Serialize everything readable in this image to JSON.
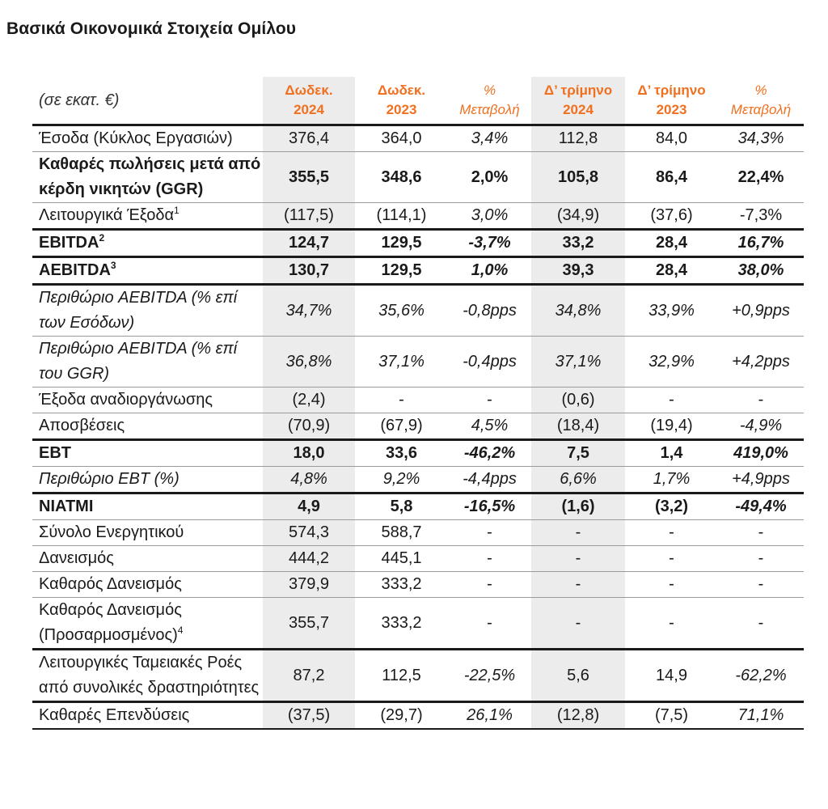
{
  "title": "Βασικά Οικονομικά Στοιχεία Ομίλου",
  "header": {
    "unit": "(σε εκατ. €)",
    "columns": [
      {
        "line1": "Δωδεκ.",
        "line2": "2024"
      },
      {
        "line1": "Δωδεκ.",
        "line2": "2023"
      },
      {
        "line1": "%",
        "line2": "Μεταβολή"
      },
      {
        "line1": "Δ’ τρίμηνο",
        "line2": "2024"
      },
      {
        "line1": "Δ’ τρίμηνο",
        "line2": "2023"
      },
      {
        "line1": "%",
        "line2": "Μεταβολή"
      }
    ]
  },
  "rows": [
    {
      "label": "Έσοδα (Κύκλος Εργασιών)",
      "sup": "",
      "values": [
        "376,4",
        "364,0",
        "3,4%",
        "112,8",
        "84,0",
        "34,3%"
      ]
    },
    {
      "label": "Καθαρές πωλήσεις μετά από κέρδη νικητών (GGR)",
      "sup": "",
      "values": [
        "355,5",
        "348,6",
        "2,0%",
        "105,8",
        "86,4",
        "22,4%"
      ]
    },
    {
      "label": "Λειτουργικά Έξοδα",
      "sup": "1",
      "values": [
        "(117,5)",
        "(114,1)",
        "3,0%",
        "(34,9)",
        "(37,6)",
        "-7,3%"
      ]
    },
    {
      "label": "EBITDA",
      "sup": "2",
      "values": [
        "124,7",
        "129,5",
        "-3,7%",
        "33,2",
        "28,4",
        "16,7%"
      ]
    },
    {
      "label": "AEBITDA",
      "sup": "3",
      "values": [
        "130,7",
        "129,5",
        "1,0%",
        "39,3",
        "28,4",
        "38,0%"
      ]
    },
    {
      "label": "Περιθώριο AEBITDA (% επί των Εσόδων)",
      "sup": "",
      "values": [
        "34,7%",
        "35,6%",
        "-0,8pps",
        "34,8%",
        "33,9%",
        "+0,9pps"
      ]
    },
    {
      "label": "Περιθώριο AEBITDA (% επί του GGR)",
      "sup": "",
      "values": [
        "36,8%",
        "37,1%",
        "-0,4pps",
        "37,1%",
        "32,9%",
        "+4,2pps"
      ]
    },
    {
      "label": "Έξοδα αναδιοργάνωσης",
      "sup": "",
      "values": [
        "(2,4)",
        "-",
        "-",
        "(0,6)",
        "-",
        "-"
      ]
    },
    {
      "label": "Αποσβέσεις",
      "sup": "",
      "values": [
        "(70,9)",
        "(67,9)",
        "4,5%",
        "(18,4)",
        "(19,4)",
        "-4,9%"
      ]
    },
    {
      "label": "EBT",
      "sup": "",
      "values": [
        "18,0",
        "33,6",
        "-46,2%",
        "7,5",
        "1,4",
        "419,0%"
      ]
    },
    {
      "label": "Περιθώριο EBT (%)",
      "sup": "",
      "values": [
        "4,8%",
        "9,2%",
        "-4,4pps",
        "6,6%",
        "1,7%",
        "+4,9pps"
      ]
    },
    {
      "label": "NIATMI",
      "sup": "",
      "values": [
        "4,9",
        "5,8",
        "-16,5%",
        "(1,6)",
        "(3,2)",
        "-49,4%"
      ]
    },
    {
      "label": "Σύνολο Ενεργητικού",
      "sup": "",
      "values": [
        "574,3",
        "588,7",
        "-",
        "-",
        "-",
        "-"
      ]
    },
    {
      "label": "Δανεισμός",
      "sup": "",
      "values": [
        "444,2",
        "445,1",
        "-",
        "-",
        "-",
        "-"
      ]
    },
    {
      "label": "Καθαρός Δανεισμός",
      "sup": "",
      "values": [
        "379,9",
        "333,2",
        "-",
        "-",
        "-",
        "-"
      ]
    },
    {
      "label": "Καθαρός Δανεισμός (Προσαρμοσμένος)",
      "sup": "4",
      "values": [
        "355,7",
        "333,2",
        "-",
        "-",
        "-",
        "-"
      ]
    },
    {
      "label": "Λειτουργικές Ταμειακές Ροές από συνολικές δραστηριότητες",
      "sup": "",
      "values": [
        "87,2",
        "112,5",
        "-22,5%",
        "5,6",
        "14,9",
        "-62,2%"
      ]
    },
    {
      "label": "Καθαρές Επενδύσεις",
      "sup": "",
      "values": [
        "(37,5)",
        "(29,7)",
        "26,1%",
        "(12,8)",
        "(7,5)",
        "71,1%"
      ]
    }
  ],
  "colors": {
    "accent": "#f07020",
    "shade": "#ececec",
    "rule": "#1a1a1a"
  }
}
